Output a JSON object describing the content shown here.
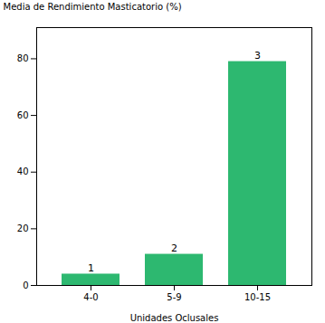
{
  "chart_data": {
    "type": "bar",
    "categories": [
      "4-0",
      "5-9",
      "10-15"
    ],
    "values": [
      4.0,
      11.0,
      79.0
    ],
    "annotations": [
      "1",
      "2",
      "3"
    ],
    "color": "#2db870",
    "xlabel": "Unidades Oclusales",
    "ylabel": "Media de Rendimiento Masticatorio (%)",
    "ylim": [
      0,
      91
    ],
    "yticks": [
      0,
      20,
      40,
      60,
      80
    ],
    "grid": false
  }
}
